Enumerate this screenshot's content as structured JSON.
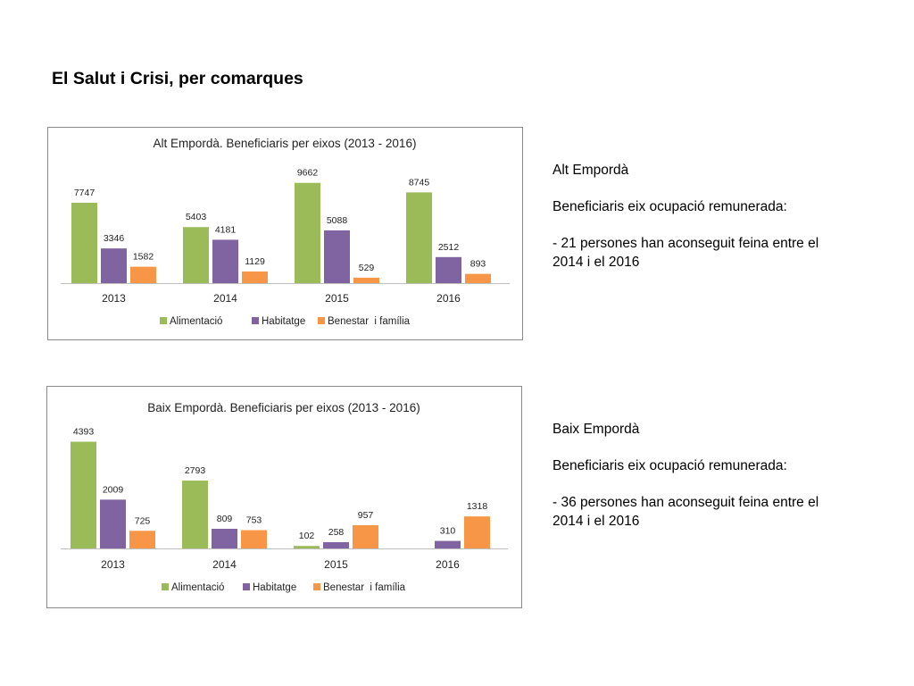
{
  "page": {
    "title": "El Salut i Crisi, per comarques"
  },
  "colors": {
    "series": [
      "#9bbb59",
      "#8064a2",
      "#f79646"
    ]
  },
  "notes": [
    {
      "heading": "Alt Empordà",
      "subheading": "Beneficiaris eix ocupació remunerada:",
      "line1": "- 21 persones han aconseguit feina entre el",
      "line2": "2014 i el 2016"
    },
    {
      "heading": "Baix Empordà",
      "subheading": "Beneficiaris eix ocupació remunerada:",
      "line1": "- 36 persones han aconseguit feina entre el",
      "line2": "2014 i el 2016"
    }
  ],
  "chart_data": [
    {
      "type": "bar",
      "title": "Alt Empordà. Beneficiaris per eixos (2013 - 2016)",
      "xlabel": "",
      "ylabel": "",
      "categories": [
        "2013",
        "2014",
        "2015",
        "2016"
      ],
      "ylim": [
        0,
        10500
      ],
      "grid": false,
      "legend_position": "bottom",
      "series": [
        {
          "name": "Alimentació",
          "values": [
            7747,
            5403,
            9662,
            8745
          ]
        },
        {
          "name": "Habitatge",
          "values": [
            3346,
            4181,
            5088,
            2512
          ]
        },
        {
          "name": "Benestar  i família",
          "values": [
            1582,
            1129,
            529,
            893
          ]
        }
      ],
      "labels": [
        [
          "7747",
          "5403",
          "9662",
          "8745"
        ],
        [
          "3346",
          "4181",
          "5088",
          "2512"
        ],
        [
          "1582",
          "1129",
          "529",
          "893"
        ]
      ]
    },
    {
      "type": "bar",
      "title": "Baix Empordà. Beneficiaris per eixos (2013 - 2016)",
      "xlabel": "",
      "ylabel": "",
      "categories": [
        "2013",
        "2014",
        "2015",
        "2016"
      ],
      "ylim": [
        0,
        5000
      ],
      "grid": false,
      "legend_position": "bottom",
      "series": [
        {
          "name": "Alimentació",
          "values": [
            4393,
            2793,
            102,
            null
          ]
        },
        {
          "name": "Habitatge",
          "values": [
            2009,
            809,
            258,
            310
          ]
        },
        {
          "name": "Benestar  i família",
          "values": [
            725,
            753,
            957,
            1318
          ]
        }
      ],
      "labels": [
        [
          "4393",
          "2793",
          "102",
          ""
        ],
        [
          "2009",
          "809",
          "258",
          "310"
        ],
        [
          "725",
          "753",
          "957",
          "1318"
        ]
      ]
    }
  ]
}
